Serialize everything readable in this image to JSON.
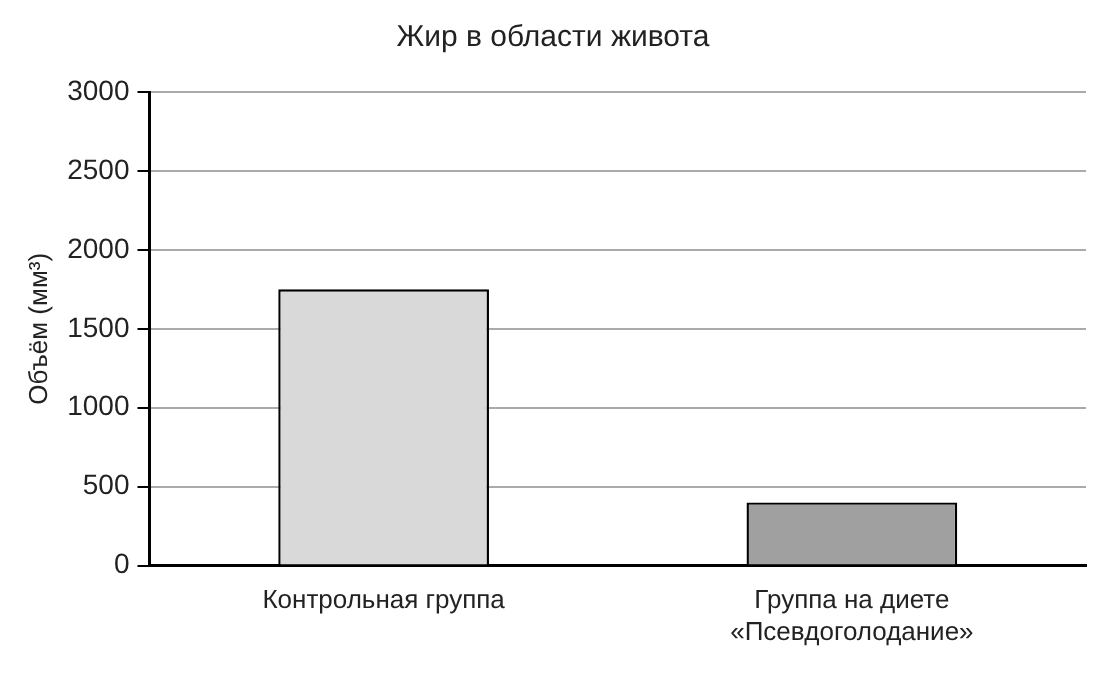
{
  "chart_data": {
    "type": "bar",
    "title": "Жир в области живота",
    "ylabel": "Объём (мм³)",
    "categories": [
      "Контрольная группа",
      "Группа на диете «Псевдоголодание»"
    ],
    "values": [
      1750,
      400
    ],
    "colors": [
      "#d9d9d9",
      "#a0a0a0"
    ],
    "ylim": [
      0,
      3000
    ],
    "yticks": [
      0,
      500,
      1000,
      1500,
      2000,
      2500,
      3000
    ],
    "grid": "y",
    "legend": false
  }
}
